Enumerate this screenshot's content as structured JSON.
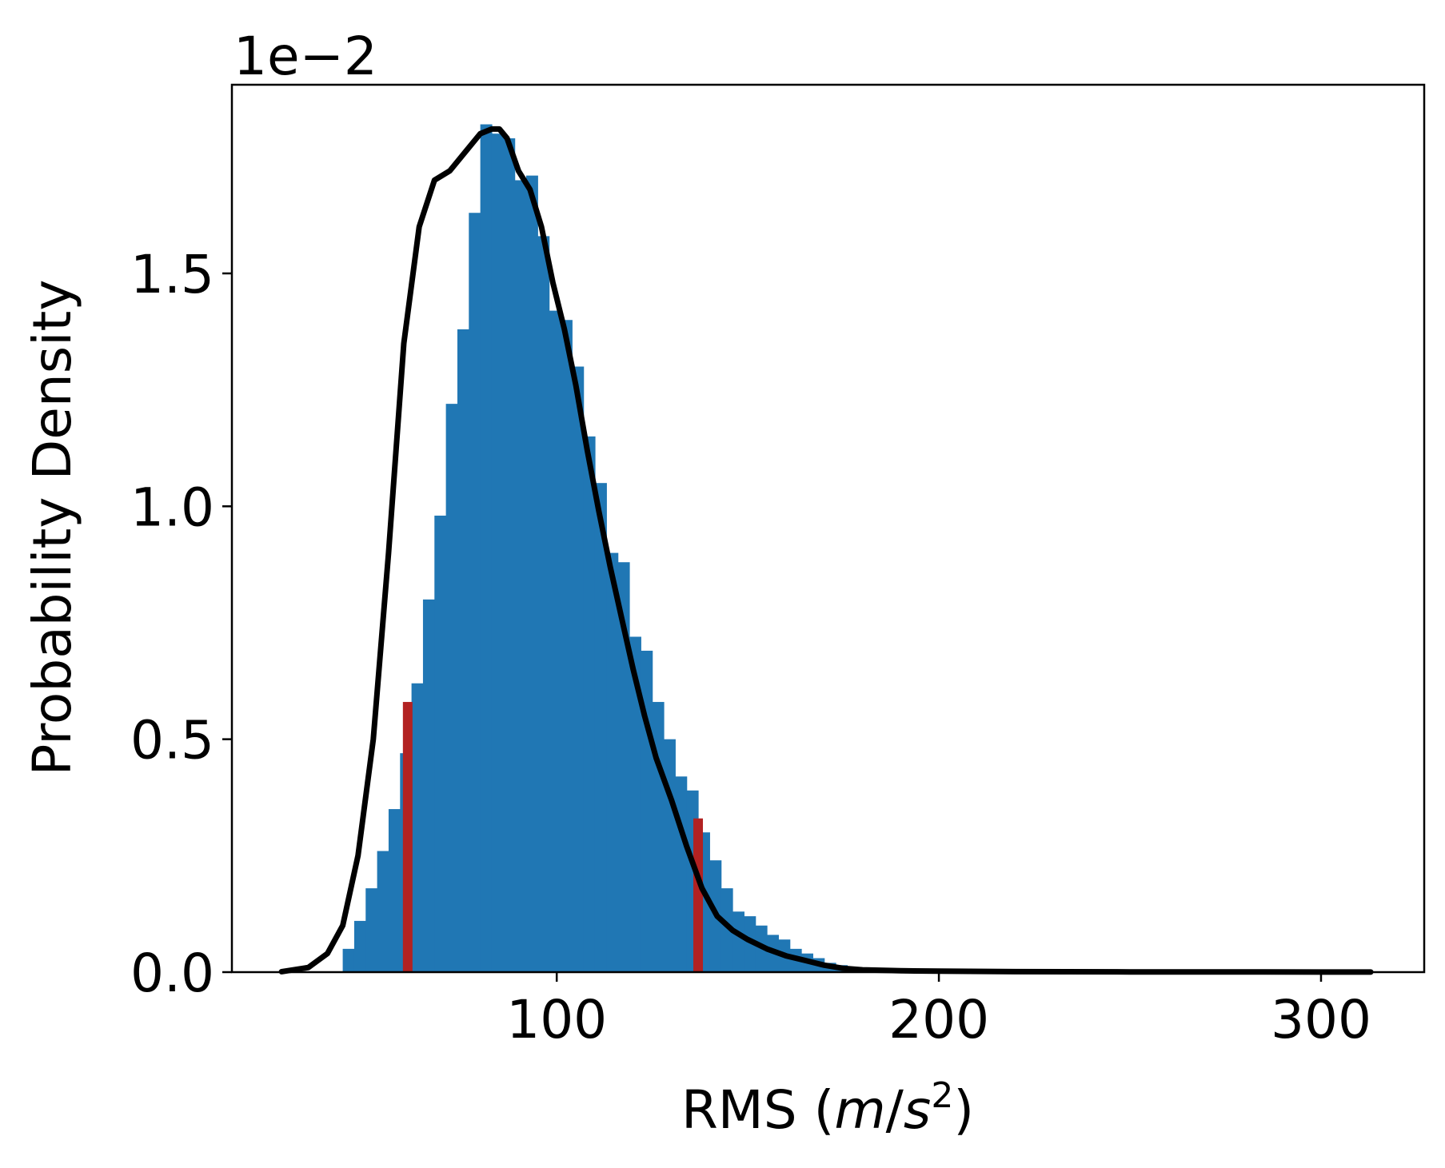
{
  "chart_data": {
    "type": "bar",
    "title": "",
    "xlabel_main": "RMS (",
    "xlabel_var_m": "m",
    "xlabel_slash": "/",
    "xlabel_var_s": "s",
    "xlabel_sup": "2",
    "xlabel_close": ")",
    "ylabel": "Probability Density",
    "y_offset_text": "1e−2",
    "xlim": [
      15,
      327
    ],
    "ylim": [
      0,
      1.905
    ],
    "x_ticks": [
      {
        "value": 100,
        "label": "100"
      },
      {
        "value": 200,
        "label": "200"
      },
      {
        "value": 300,
        "label": "300"
      }
    ],
    "y_ticks": [
      {
        "value": 0.0,
        "label": "0.0"
      },
      {
        "value": 0.5,
        "label": "0.5"
      },
      {
        "value": 1.0,
        "label": "1.0"
      },
      {
        "value": 1.5,
        "label": "1.5"
      }
    ],
    "grid": false,
    "legend": "none",
    "histogram": {
      "name": "",
      "color": "#2077b4",
      "bin_edges": [
        44,
        47,
        50,
        53,
        56,
        59,
        62,
        65,
        68,
        71,
        74,
        77,
        80,
        83,
        86,
        89,
        92,
        95,
        98,
        101,
        104,
        107,
        110,
        113,
        116,
        119,
        122,
        125,
        128,
        131,
        134,
        137,
        140,
        143,
        146,
        149,
        152,
        155,
        158,
        161,
        164,
        167,
        170,
        173,
        176,
        179,
        182,
        185,
        188
      ],
      "values": [
        0.05,
        0.11,
        0.18,
        0.26,
        0.35,
        0.47,
        0.62,
        0.8,
        0.98,
        1.22,
        1.38,
        1.63,
        1.82,
        1.8,
        1.79,
        1.7,
        1.71,
        1.58,
        1.42,
        1.4,
        1.3,
        1.15,
        1.05,
        0.9,
        0.88,
        0.72,
        0.69,
        0.58,
        0.5,
        0.42,
        0.39,
        0.3,
        0.24,
        0.18,
        0.13,
        0.12,
        0.1,
        0.08,
        0.07,
        0.05,
        0.04,
        0.03,
        0.02,
        0.015,
        0.01,
        0.008,
        0.005,
        0.003
      ]
    },
    "density_curve": {
      "name": "",
      "color": "#000000",
      "x": [
        28,
        35,
        40,
        44,
        48,
        52,
        56,
        60,
        64,
        68,
        72,
        76,
        80,
        83,
        85,
        87,
        90,
        93,
        96,
        99,
        102,
        105,
        108,
        111,
        114,
        117,
        120,
        123,
        126,
        130,
        134,
        138,
        142,
        146,
        150,
        155,
        160,
        165,
        170,
        175,
        180,
        190,
        200,
        220,
        250,
        285,
        313
      ],
      "y": [
        0.001,
        0.01,
        0.04,
        0.1,
        0.25,
        0.5,
        0.9,
        1.35,
        1.6,
        1.7,
        1.72,
        1.76,
        1.8,
        1.81,
        1.81,
        1.79,
        1.72,
        1.68,
        1.6,
        1.48,
        1.38,
        1.26,
        1.12,
        0.99,
        0.87,
        0.76,
        0.65,
        0.55,
        0.46,
        0.37,
        0.27,
        0.18,
        0.12,
        0.09,
        0.07,
        0.05,
        0.035,
        0.025,
        0.015,
        0.008,
        0.005,
        0.003,
        0.002,
        0.001,
        0.0005,
        0.0003,
        0.0002
      ]
    },
    "markers": {
      "color": "#b22222",
      "lines": [
        {
          "x": 61,
          "y": 0.58
        },
        {
          "x": 137,
          "y": 0.33
        }
      ]
    }
  }
}
